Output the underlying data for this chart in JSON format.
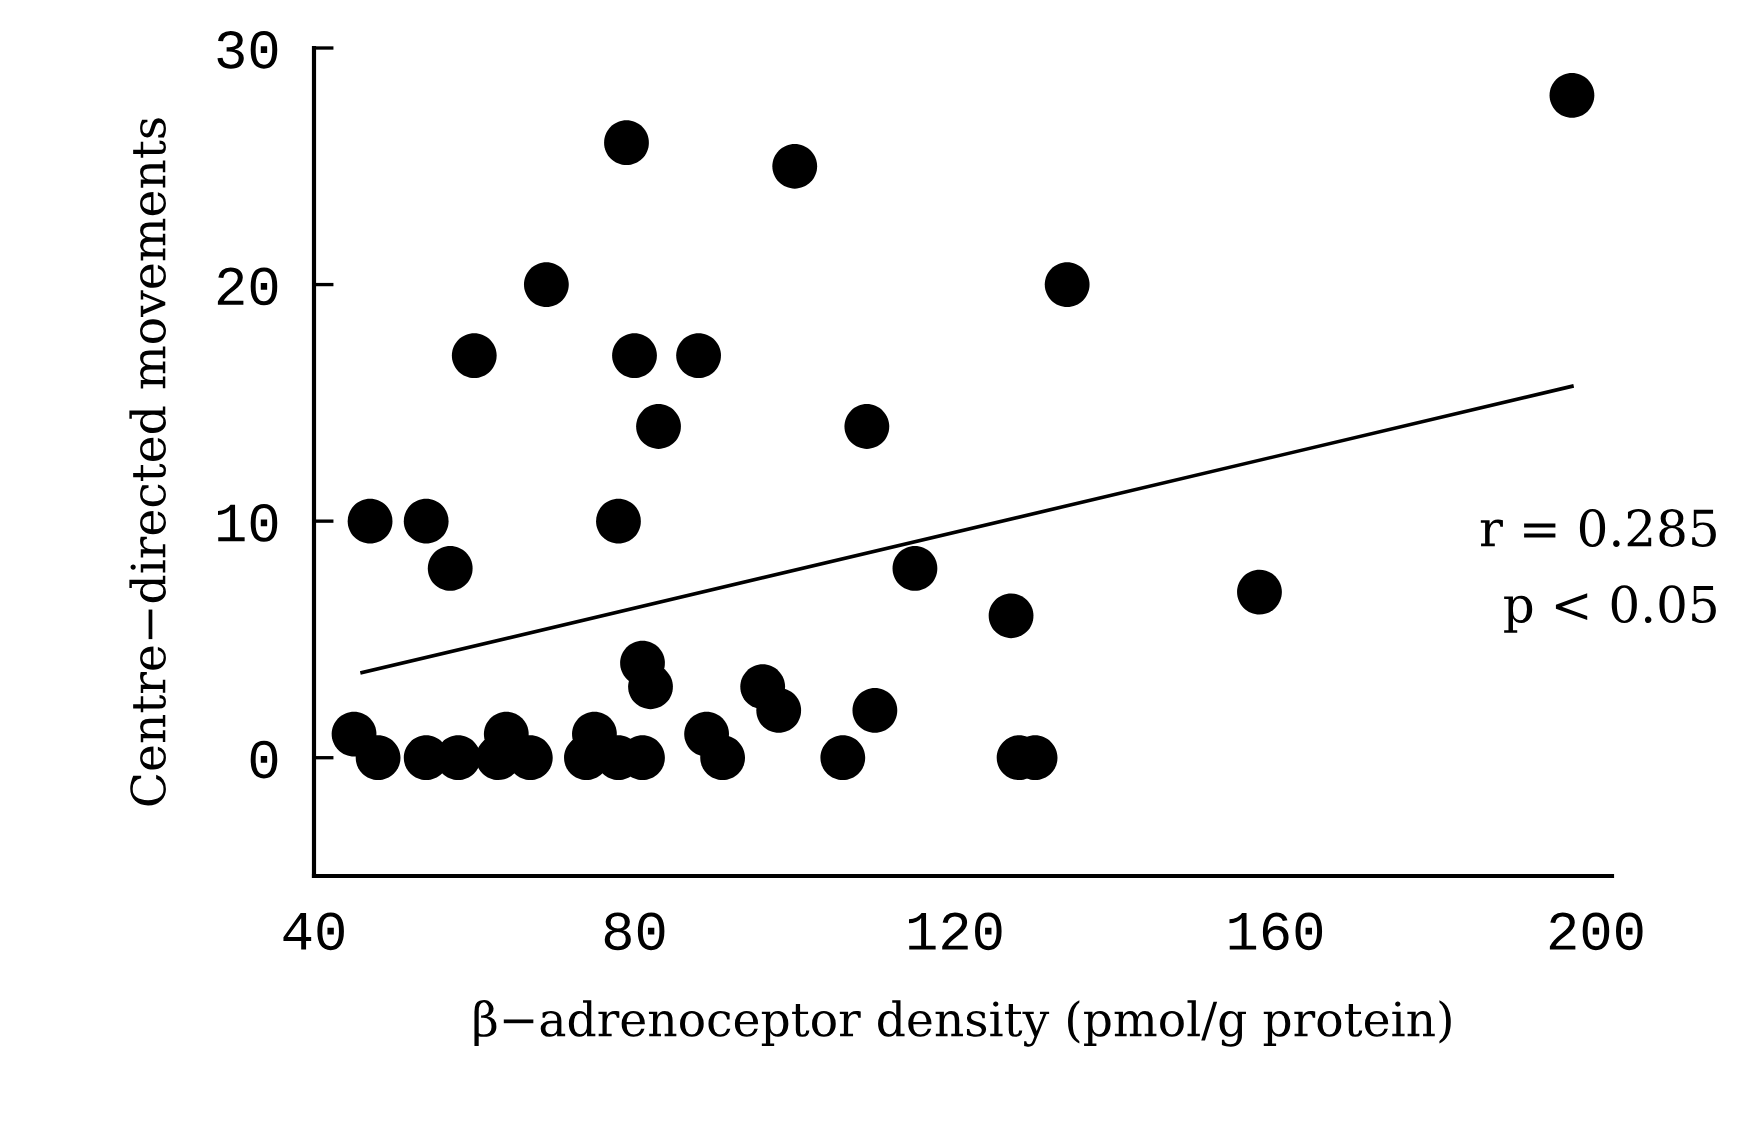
{
  "chart_data": {
    "type": "scatter",
    "xlabel": "β−adrenoceptor density (pmol/g protein)",
    "ylabel": "Centre−directed movements",
    "xlim": [
      40,
      202
    ],
    "xticks": [
      40,
      80,
      120,
      160,
      200
    ],
    "ylim": [
      -5,
      30
    ],
    "yticks": [
      0,
      10,
      20,
      30
    ],
    "grid": false,
    "marker": "circle",
    "series": [
      {
        "color": "#000000",
        "x": [
          45,
          48,
          47,
          54,
          57,
          54,
          58,
          60,
          63,
          64,
          67,
          69,
          74,
          75,
          78,
          79,
          78,
          80,
          81,
          81,
          82,
          83,
          88,
          89,
          91,
          96,
          98,
          100,
          106,
          109,
          110,
          115,
          127,
          128,
          130,
          134,
          158,
          197
        ],
        "values": [
          1,
          0,
          10,
          10,
          8,
          0,
          0,
          17,
          0,
          1,
          0,
          20,
          0,
          1,
          10,
          26,
          0,
          17,
          0,
          4,
          3,
          14,
          17,
          1,
          0,
          3,
          2,
          25,
          0,
          14,
          2,
          8,
          6,
          0,
          0,
          20,
          7,
          28
        ]
      },
      {
        "type": "line",
        "color": "#000000",
        "marker": "none",
        "x": [
          46,
          197
        ],
        "values": [
          3.6,
          15.7
        ]
      }
    ],
    "annotations": [
      "r = 0.285",
      "p < 0.05"
    ]
  }
}
